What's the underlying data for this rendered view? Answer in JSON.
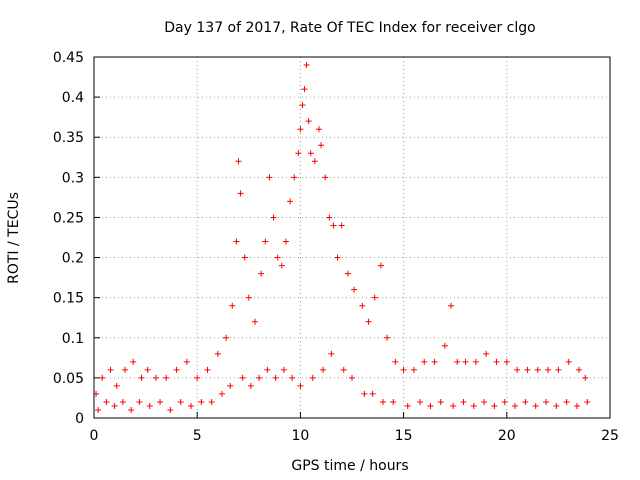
{
  "chart_data": {
    "type": "scatter",
    "title": "Day 137 of 2017, Rate Of TEC Index for receiver clgo",
    "xlabel": "GPS time / hours",
    "ylabel": "ROTI / TECUs",
    "xlim": [
      0,
      25
    ],
    "ylim": [
      0,
      0.45
    ],
    "xticks": [
      "0",
      "5",
      "10",
      "15",
      "20",
      "25"
    ],
    "yticks": [
      "0",
      "0.05",
      "0.1",
      "0.15",
      "0.2",
      "0.25",
      "0.3",
      "0.35",
      "0.4",
      "0.45"
    ],
    "grid": true,
    "marker": "+",
    "color": "#ff0000",
    "series": [
      {
        "values": [
          [
            0.1,
            0.03
          ],
          [
            0.4,
            0.05
          ],
          [
            0.8,
            0.06
          ],
          [
            1.1,
            0.04
          ],
          [
            1.5,
            0.06
          ],
          [
            1.9,
            0.07
          ],
          [
            2.3,
            0.05
          ],
          [
            2.6,
            0.06
          ],
          [
            3.0,
            0.05
          ],
          [
            3.5,
            0.05
          ],
          [
            4.0,
            0.06
          ],
          [
            4.5,
            0.07
          ],
          [
            5.0,
            0.05
          ],
          [
            5.5,
            0.06
          ],
          [
            6.0,
            0.08
          ],
          [
            6.4,
            0.1
          ],
          [
            6.7,
            0.14
          ],
          [
            6.9,
            0.22
          ],
          [
            7.0,
            0.32
          ],
          [
            7.1,
            0.28
          ],
          [
            7.3,
            0.2
          ],
          [
            7.5,
            0.15
          ],
          [
            7.8,
            0.12
          ],
          [
            8.1,
            0.18
          ],
          [
            8.3,
            0.22
          ],
          [
            8.5,
            0.3
          ],
          [
            8.7,
            0.25
          ],
          [
            8.9,
            0.2
          ],
          [
            9.1,
            0.19
          ],
          [
            9.3,
            0.22
          ],
          [
            9.5,
            0.27
          ],
          [
            9.7,
            0.3
          ],
          [
            9.9,
            0.33
          ],
          [
            10.0,
            0.36
          ],
          [
            10.1,
            0.39
          ],
          [
            10.2,
            0.41
          ],
          [
            10.3,
            0.44
          ],
          [
            10.4,
            0.37
          ],
          [
            10.5,
            0.33
          ],
          [
            10.7,
            0.32
          ],
          [
            10.9,
            0.36
          ],
          [
            11.0,
            0.34
          ],
          [
            11.2,
            0.3
          ],
          [
            11.4,
            0.25
          ],
          [
            11.6,
            0.24
          ],
          [
            11.8,
            0.2
          ],
          [
            12.0,
            0.24
          ],
          [
            12.3,
            0.18
          ],
          [
            12.6,
            0.16
          ],
          [
            13.0,
            0.14
          ],
          [
            13.3,
            0.12
          ],
          [
            13.6,
            0.15
          ],
          [
            13.9,
            0.19
          ],
          [
            14.2,
            0.1
          ],
          [
            14.6,
            0.07
          ],
          [
            15.0,
            0.06
          ],
          [
            15.5,
            0.06
          ],
          [
            16.0,
            0.07
          ],
          [
            16.5,
            0.07
          ],
          [
            17.0,
            0.09
          ],
          [
            17.3,
            0.14
          ],
          [
            17.6,
            0.07
          ],
          [
            18.0,
            0.07
          ],
          [
            18.5,
            0.07
          ],
          [
            19.0,
            0.08
          ],
          [
            19.5,
            0.07
          ],
          [
            20.0,
            0.07
          ],
          [
            20.5,
            0.06
          ],
          [
            21.0,
            0.06
          ],
          [
            21.5,
            0.06
          ],
          [
            22.0,
            0.06
          ],
          [
            22.5,
            0.06
          ],
          [
            23.0,
            0.07
          ],
          [
            23.5,
            0.06
          ],
          [
            23.8,
            0.05
          ],
          [
            0.2,
            0.01
          ],
          [
            0.6,
            0.02
          ],
          [
            1.0,
            0.015
          ],
          [
            1.4,
            0.02
          ],
          [
            1.8,
            0.01
          ],
          [
            2.2,
            0.02
          ],
          [
            2.7,
            0.015
          ],
          [
            3.2,
            0.02
          ],
          [
            3.7,
            0.01
          ],
          [
            4.2,
            0.02
          ],
          [
            4.7,
            0.015
          ],
          [
            5.2,
            0.02
          ],
          [
            5.7,
            0.02
          ],
          [
            6.2,
            0.03
          ],
          [
            6.6,
            0.04
          ],
          [
            7.2,
            0.05
          ],
          [
            7.6,
            0.04
          ],
          [
            8.0,
            0.05
          ],
          [
            8.4,
            0.06
          ],
          [
            8.8,
            0.05
          ],
          [
            9.2,
            0.06
          ],
          [
            9.6,
            0.05
          ],
          [
            10.0,
            0.04
          ],
          [
            10.6,
            0.05
          ],
          [
            11.1,
            0.06
          ],
          [
            11.5,
            0.08
          ],
          [
            12.1,
            0.06
          ],
          [
            12.5,
            0.05
          ],
          [
            13.1,
            0.03
          ],
          [
            13.5,
            0.03
          ],
          [
            14.0,
            0.02
          ],
          [
            14.5,
            0.02
          ],
          [
            15.2,
            0.015
          ],
          [
            15.8,
            0.02
          ],
          [
            16.3,
            0.015
          ],
          [
            16.8,
            0.02
          ],
          [
            17.4,
            0.015
          ],
          [
            17.9,
            0.02
          ],
          [
            18.4,
            0.015
          ],
          [
            18.9,
            0.02
          ],
          [
            19.4,
            0.015
          ],
          [
            19.9,
            0.02
          ],
          [
            20.4,
            0.015
          ],
          [
            20.9,
            0.02
          ],
          [
            21.4,
            0.015
          ],
          [
            21.9,
            0.02
          ],
          [
            22.4,
            0.015
          ],
          [
            22.9,
            0.02
          ],
          [
            23.4,
            0.015
          ],
          [
            23.9,
            0.02
          ]
        ]
      }
    ]
  }
}
